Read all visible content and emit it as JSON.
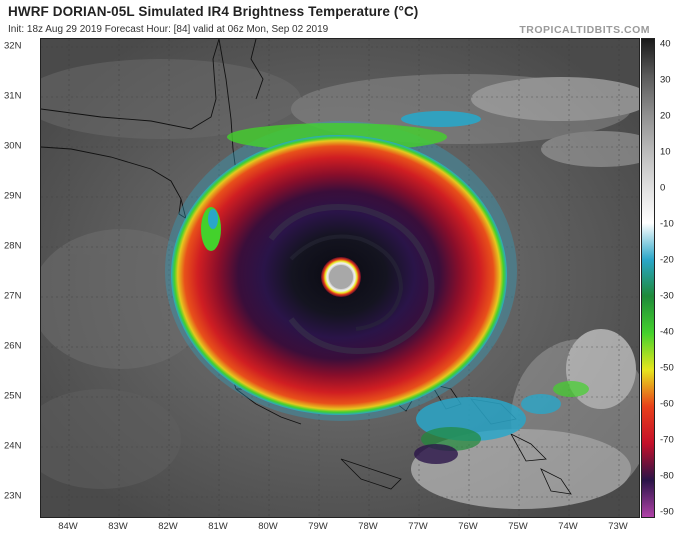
{
  "header": {
    "title": "HWRF DORIAN-05L Simulated IR4 Brightness Temperature (°C)",
    "subtitle": "Init: 18z Aug 29 2019   Forecast Hour: [84]   valid at 06z Mon, Sep 02 2019",
    "brand": "TROPICALTIDBITS.COM"
  },
  "lat_labels": [
    "32N",
    "31N",
    "30N",
    "29N",
    "28N",
    "27N",
    "26N",
    "25N",
    "24N",
    "23N"
  ],
  "lon_labels": [
    "84W",
    "83W",
    "82W",
    "81W",
    "80W",
    "79W",
    "78W",
    "77W",
    "76W",
    "75W",
    "74W",
    "73W"
  ],
  "colorbar": {
    "labels": [
      "40",
      "30",
      "20",
      "10",
      "0",
      "-10",
      "-20",
      "-30",
      "-40",
      "-50",
      "-60",
      "-70",
      "-80",
      "-90"
    ],
    "colors": [
      "#1a1a1a",
      "#5a5a5a",
      "#8c8c8c",
      "#b8b8b8",
      "#dedede",
      "#ffffff",
      "#2aa6c8",
      "#1f8a3a",
      "#43d12c",
      "#e6e61e",
      "#e8401a",
      "#c4102a",
      "#2a1448",
      "#b042a8"
    ]
  },
  "map": {
    "storm_name": "DORIAN-05L",
    "eye_temp_colors": [
      "#2a1448",
      "#1a1440",
      "#c4102a",
      "#e8401a",
      "#e6e61e",
      "#43d12c"
    ]
  }
}
